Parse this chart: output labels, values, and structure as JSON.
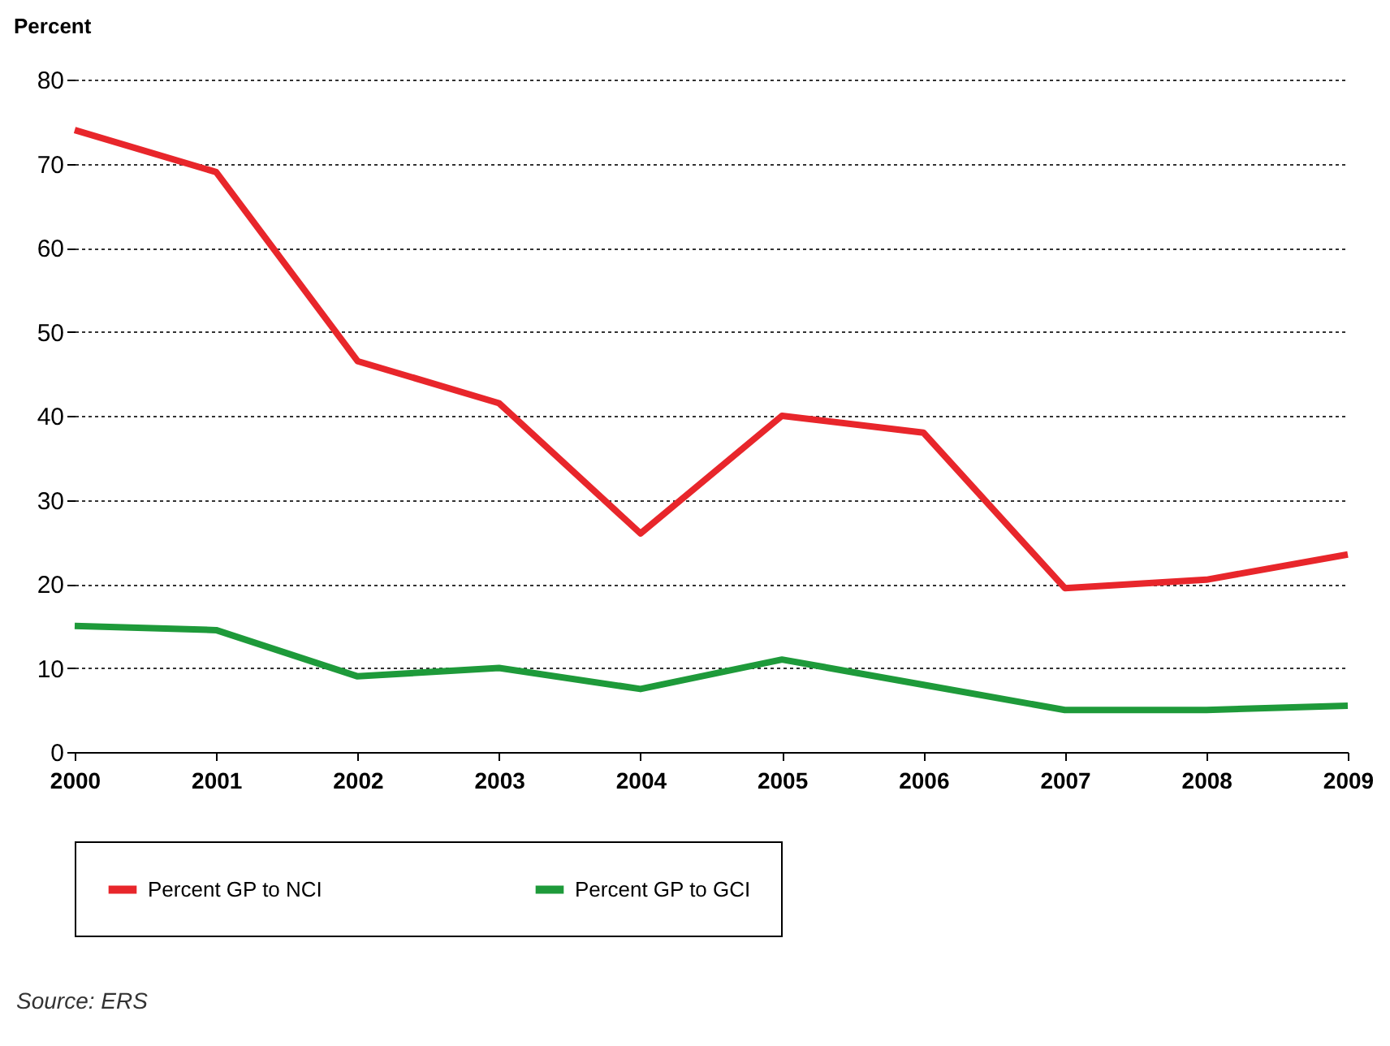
{
  "chart_data": {
    "type": "line",
    "ylabel": "Percent",
    "x": [
      2000,
      2001,
      2002,
      2003,
      2004,
      2005,
      2006,
      2007,
      2008,
      2009
    ],
    "xlim": [
      2000,
      2009
    ],
    "xticks": [
      2000,
      2001,
      2002,
      2003,
      2004,
      2005,
      2006,
      2007,
      2008,
      2009
    ],
    "ylim": [
      0,
      80
    ],
    "yticks": [
      0,
      10,
      20,
      30,
      40,
      50,
      60,
      70,
      80
    ],
    "grid": "y",
    "legend": "bottom",
    "line_style": "solid",
    "marker": "none",
    "series": [
      {
        "name": "Percent GP to NCI",
        "color": "#e8262b",
        "values": [
          74,
          69,
          46.5,
          41.5,
          26,
          40,
          38,
          19.5,
          20.5,
          23.5
        ]
      },
      {
        "name": "Percent GP to GCI",
        "color": "#1e9a3a",
        "values": [
          15,
          14.5,
          9,
          10,
          7.5,
          11,
          8,
          5,
          5,
          5.5
        ]
      }
    ],
    "annotations": [
      "Source: ERS"
    ]
  }
}
